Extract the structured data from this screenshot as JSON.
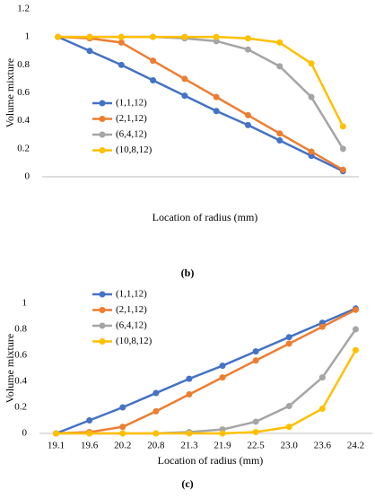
{
  "chart_data": [
    {
      "type": "line",
      "y_label": "Volume mixture",
      "x_label": "Location of radius (mm)",
      "caption": "(b)",
      "categories": [
        null,
        null,
        null,
        null,
        null,
        null,
        null,
        null,
        null,
        null
      ],
      "ylim": [
        0,
        1.2
      ],
      "yticks": [
        0,
        0.2,
        0.4,
        0.6,
        0.8,
        1,
        1.2
      ],
      "series": [
        {
          "name": "(1,1,12)",
          "color": "#4472c4",
          "values": [
            1,
            0.9,
            0.8,
            0.69,
            0.58,
            0.47,
            0.37,
            0.26,
            0.15,
            0.04
          ]
        },
        {
          "name": "(2,1,12)",
          "color": "#ed7d31",
          "values": [
            1,
            0.99,
            0.96,
            0.83,
            0.7,
            0.57,
            0.44,
            0.31,
            0.18,
            0.05
          ]
        },
        {
          "name": "(6,4,12)",
          "color": "#a5a5a5",
          "values": [
            1,
            1,
            1,
            1,
            0.99,
            0.97,
            0.91,
            0.79,
            0.57,
            0.2
          ]
        },
        {
          "name": "(10,8,12)",
          "color": "#ffc000",
          "values": [
            1,
            1,
            1,
            1,
            1,
            1,
            0.99,
            0.96,
            0.81,
            0.36
          ]
        }
      ]
    },
    {
      "type": "line",
      "y_label": "Volume mixture",
      "x_label": "Location of radius (mm)",
      "caption": "(c)",
      "categories": [
        "19.1",
        "19.6",
        "20.2",
        "20.8",
        "21.3",
        "21.9",
        "22.5",
        "23.0",
        "23.6",
        "24.2"
      ],
      "ylim": [
        0,
        1
      ],
      "yticks": [
        0,
        0.2,
        0.4,
        0.6,
        0.8,
        1
      ],
      "series": [
        {
          "name": "(1,1,12)",
          "color": "#4472c4",
          "values": [
            0,
            0.1,
            0.2,
            0.31,
            0.42,
            0.52,
            0.63,
            0.74,
            0.85,
            0.96
          ]
        },
        {
          "name": "(2,1,12)",
          "color": "#ed7d31",
          "values": [
            0,
            0.01,
            0.05,
            0.17,
            0.3,
            0.43,
            0.56,
            0.69,
            0.82,
            0.95
          ]
        },
        {
          "name": "(6,4,12)",
          "color": "#a5a5a5",
          "values": [
            0,
            0,
            0,
            0,
            0.01,
            0.03,
            0.09,
            0.21,
            0.43,
            0.8
          ]
        },
        {
          "name": "(10,8,12)",
          "color": "#ffc000",
          "values": [
            0,
            0,
            0,
            0,
            0,
            0,
            0.01,
            0.05,
            0.19,
            0.64
          ]
        }
      ]
    }
  ]
}
